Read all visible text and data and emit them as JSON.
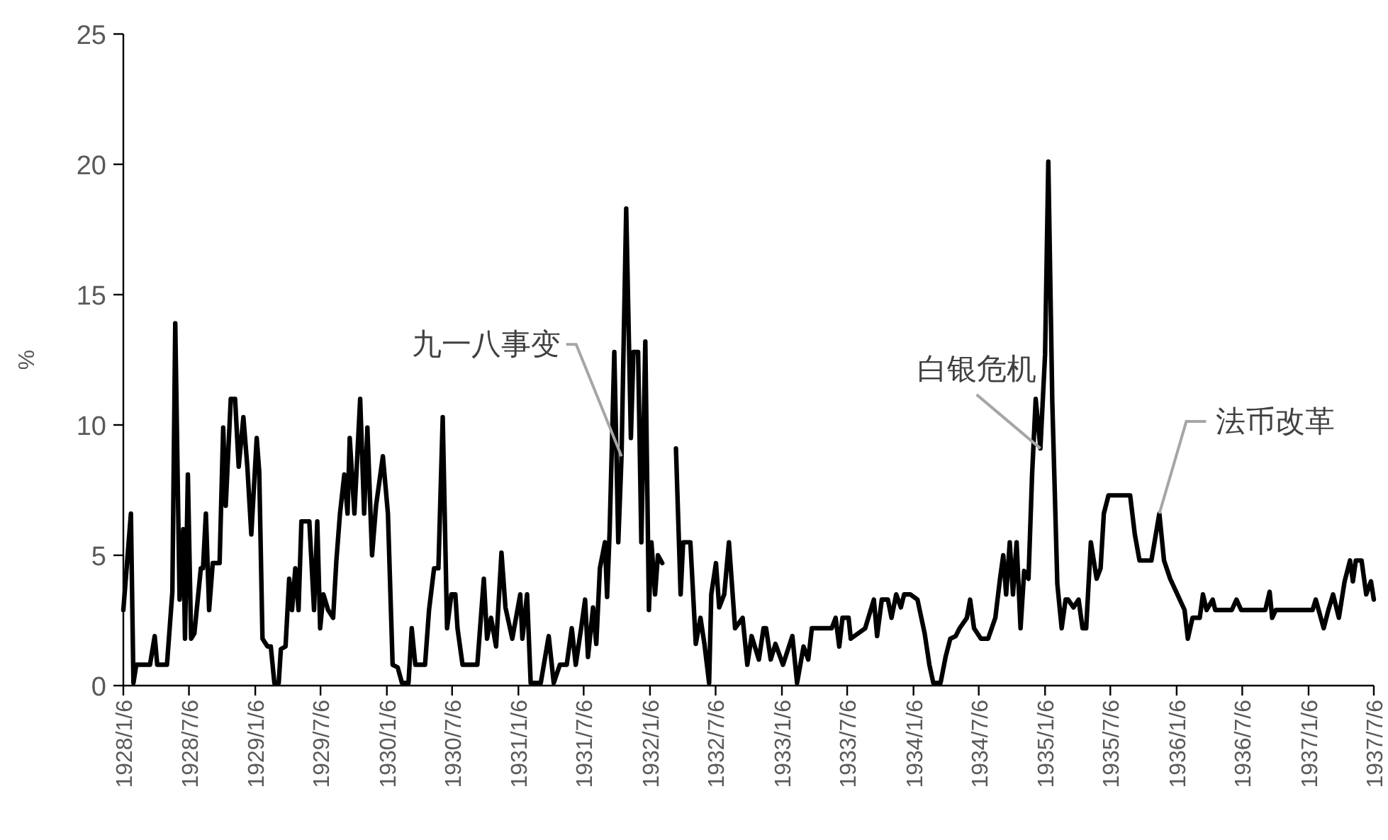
{
  "chart_data": {
    "type": "line",
    "ylabel": "%",
    "xlim": [
      "1928-01-06",
      "1937-07-06"
    ],
    "xticks": [
      {
        "value": "1928-01-06",
        "label": "1928/1/6"
      },
      {
        "value": "1928-07-06",
        "label": "1928/7/6"
      },
      {
        "value": "1929-01-06",
        "label": "1929/1/6"
      },
      {
        "value": "1929-07-06",
        "label": "1929/7/6"
      },
      {
        "value": "1930-01-06",
        "label": "1930/1/6"
      },
      {
        "value": "1930-07-06",
        "label": "1930/7/6"
      },
      {
        "value": "1931-01-06",
        "label": "1931/1/6"
      },
      {
        "value": "1931-07-06",
        "label": "1931/7/6"
      },
      {
        "value": "1932-01-06",
        "label": "1932/1/6"
      },
      {
        "value": "1932-07-06",
        "label": "1932/7/6"
      },
      {
        "value": "1933-01-06",
        "label": "1933/1/6"
      },
      {
        "value": "1933-07-06",
        "label": "1933/7/6"
      },
      {
        "value": "1934-01-06",
        "label": "1934/1/6"
      },
      {
        "value": "1934-07-06",
        "label": "1934/7/6"
      },
      {
        "value": "1935-01-06",
        "label": "1935/1/6"
      },
      {
        "value": "1935-07-06",
        "label": "1935/7/6"
      },
      {
        "value": "1936-01-06",
        "label": "1936/1/6"
      },
      {
        "value": "1936-07-06",
        "label": "1936/7/6"
      },
      {
        "value": "1937-01-06",
        "label": "1937/1/6"
      },
      {
        "value": "1937-07-06",
        "label": "1937/7/6"
      }
    ],
    "ylim": [
      0,
      25
    ],
    "yticks": [
      0,
      5,
      10,
      15,
      20,
      25
    ],
    "annotations": [
      {
        "text": "九一八事变",
        "x": "1931-10-19",
        "y": 8.8
      },
      {
        "text": "白银危机",
        "x": "1934-12-24",
        "y": 9.1
      },
      {
        "text": "法币改革",
        "x": "1935-11-19",
        "y": 6.6
      }
    ],
    "series": [
      {
        "color": "#000000",
        "x": [
          "1928-01-06",
          "1928-01-27",
          "1928-02-03",
          "1928-02-11",
          "1928-03-20",
          "1928-04-02",
          "1928-04-09",
          "1928-05-06",
          "1928-05-21",
          "1928-05-29",
          "1928-06-10",
          "1928-06-20",
          "1928-06-25",
          "1928-07-03",
          "1928-07-12",
          "1928-07-21",
          "1928-08-08",
          "1928-08-14",
          "1928-08-22",
          "1928-08-31",
          "1928-09-10",
          "1928-09-29",
          "1928-10-09",
          "1928-10-16",
          "1928-10-30",
          "1928-11-11",
          "1928-11-21",
          "1928-12-04",
          "1928-12-15",
          "1928-12-26",
          "1929-01-10",
          "1929-01-17",
          "1929-01-26",
          "1929-02-09",
          "1929-02-18",
          "1929-02-28",
          "1929-03-12",
          "1929-03-18",
          "1929-03-31",
          "1929-04-10",
          "1929-04-18",
          "1929-04-27",
          "1929-05-06",
          "1929-05-14",
          "1929-06-05",
          "1929-06-18",
          "1929-06-27",
          "1929-07-05",
          "1929-07-14",
          "1929-07-27",
          "1929-08-10",
          "1929-08-19",
          "1929-08-29",
          "1929-09-10",
          "1929-09-19",
          "1929-09-25",
          "1929-10-08",
          "1929-10-24",
          "1929-11-04",
          "1929-11-13",
          "1929-11-26",
          "1929-12-07",
          "1929-12-26",
          "1930-01-09",
          "1930-01-22",
          "1930-02-05",
          "1930-02-17",
          "1930-03-07",
          "1930-03-16",
          "1930-03-26",
          "1930-04-22",
          "1930-05-03",
          "1930-05-17",
          "1930-05-29",
          "1930-06-10",
          "1930-06-22",
          "1930-07-04",
          "1930-07-15",
          "1930-07-21",
          "1930-08-04",
          "1930-09-14",
          "1930-10-02",
          "1930-10-11",
          "1930-10-22",
          "1930-11-05",
          "1930-11-20",
          "1930-12-01",
          "1930-12-20",
          "1931-01-11",
          "1931-01-17",
          "1931-01-30",
          "1931-02-09",
          "1931-03-09",
          "1931-03-31",
          "1931-04-14",
          "1931-05-01",
          "1931-05-20",
          "1931-06-03",
          "1931-06-14",
          "1931-06-29",
          "1931-07-10",
          "1931-07-18",
          "1931-08-01",
          "1931-08-10",
          "1931-08-20",
          "1931-09-03",
          "1931-09-09",
          "1931-09-16",
          "1931-09-29",
          "1931-10-10",
          "1931-10-19",
          "1931-11-01",
          "1931-11-14",
          "1931-11-21",
          "1931-12-04",
          "1931-12-13",
          "1931-12-24",
          "1932-01-03",
          "1932-01-10",
          "1932-01-20",
          "1932-01-28",
          "1932-02-09"
        ],
        "values": [
          2.9,
          6.6,
          0.1,
          0.8,
          0.8,
          1.9,
          0.8,
          0.8,
          3.6,
          13.9,
          3.3,
          6.0,
          1.8,
          8.1,
          1.8,
          2.0,
          4.5,
          4.5,
          6.6,
          2.9,
          4.7,
          4.7,
          9.9,
          6.9,
          11.0,
          11.0,
          8.4,
          10.3,
          8.4,
          5.8,
          9.5,
          8.2,
          1.8,
          1.5,
          1.5,
          0.1,
          0.1,
          1.4,
          1.5,
          4.1,
          2.9,
          4.5,
          2.9,
          6.3,
          6.3,
          2.9,
          6.3,
          2.2,
          3.5,
          2.9,
          2.6,
          4.8,
          6.6,
          8.1,
          6.6,
          9.5,
          6.6,
          11.0,
          6.6,
          9.9,
          5.0,
          6.9,
          8.8,
          6.6,
          0.8,
          0.7,
          0.1,
          0.1,
          2.2,
          0.8,
          0.8,
          2.9,
          4.5,
          4.5,
          10.3,
          2.2,
          3.5,
          3.5,
          2.2,
          0.8,
          0.8,
          4.1,
          1.8,
          2.6,
          1.5,
          5.1,
          3.0,
          1.8,
          3.5,
          1.8,
          3.5,
          0.1,
          0.1,
          1.9,
          0.1,
          0.8,
          0.8,
          2.2,
          0.8,
          2.2,
          3.3,
          1.1,
          3.0,
          1.6,
          4.5,
          5.5,
          3.4,
          5.9,
          12.8,
          5.5,
          8.8,
          18.3,
          9.5,
          12.8,
          12.8,
          5.5,
          13.2,
          2.9,
          5.5,
          3.5,
          5.0,
          4.7
        ]
      },
      {
        "color": "#000000",
        "x": [
          "1932-03-18",
          "1932-03-31",
          "1932-04-07",
          "1932-04-27",
          "1932-05-12",
          "1932-05-25",
          "1932-06-05",
          "1932-06-18",
          "1932-06-24",
          "1932-07-07",
          "1932-07-16",
          "1932-07-30",
          "1932-08-12",
          "1932-08-29",
          "1932-09-19",
          "1932-10-02",
          "1932-10-14",
          "1932-11-03",
          "1932-11-16",
          "1932-11-23",
          "1932-12-06",
          "1932-12-19",
          "1933-01-09",
          "1933-02-04",
          "1933-02-17",
          "1933-03-07",
          "1933-03-20",
          "1933-03-30",
          "1933-04-15",
          "1933-05-24",
          "1933-06-04",
          "1933-06-14",
          "1933-06-23",
          "1933-07-10",
          "1933-07-16",
          "1933-08-25",
          "1933-09-18",
          "1933-09-27",
          "1933-10-10",
          "1933-10-27",
          "1933-11-06",
          "1933-11-19",
          "1933-12-02",
          "1933-12-11",
          "1933-12-28",
          "1934-01-17",
          "1934-02-06",
          "1934-02-19",
          "1934-03-02",
          "1934-03-22",
          "1934-04-05",
          "1934-04-18",
          "1934-05-03",
          "1934-05-14",
          "1934-06-03",
          "1934-06-12",
          "1934-06-23",
          "1934-07-12",
          "1934-08-01",
          "1934-08-21",
          "1934-09-03",
          "1934-09-12",
          "1934-09-20",
          "1934-09-30",
          "1934-10-09",
          "1934-10-19",
          "1934-10-30",
          "1934-11-09",
          "1934-11-21",
          "1934-12-01",
          "1934-12-11",
          "1934-12-24",
          "1935-01-06",
          "1935-01-15",
          "1935-01-26",
          "1935-02-09",
          "1935-02-21",
          "1935-03-04",
          "1935-03-11",
          "1935-03-26",
          "1935-04-09",
          "1935-04-20",
          "1935-04-30",
          "1935-05-13",
          "1935-05-29",
          "1935-06-09",
          "1935-06-18",
          "1935-07-01",
          "1935-08-30",
          "1935-09-12",
          "1935-09-25",
          "1935-10-28",
          "1935-11-19",
          "1935-12-02",
          "1935-12-19",
          "1936-01-08",
          "1936-01-28",
          "1936-02-06",
          "1936-02-19",
          "1936-03-10",
          "1936-03-19",
          "1936-03-29",
          "1936-04-15",
          "1936-04-22",
          "1936-06-07",
          "1936-06-20",
          "1936-07-03",
          "1936-09-08",
          "1936-09-20",
          "1936-09-27",
          "1936-10-07",
          "1937-01-17",
          "1937-01-26",
          "1937-02-03",
          "1937-02-17",
          "1937-03-02",
          "1937-03-15",
          "1937-03-31",
          "1937-04-16",
          "1937-05-01",
          "1937-05-09",
          "1937-05-17",
          "1937-06-02",
          "1937-06-15",
          "1937-06-28",
          "1937-07-06"
        ],
        "values": [
          9.1,
          3.5,
          5.5,
          5.5,
          1.6,
          2.6,
          1.6,
          0.1,
          3.5,
          4.7,
          3.0,
          3.5,
          5.5,
          2.2,
          2.6,
          0.8,
          1.9,
          1.0,
          2.2,
          2.2,
          1.0,
          1.6,
          0.8,
          1.9,
          0.1,
          1.5,
          1.0,
          2.2,
          2.2,
          2.2,
          2.6,
          1.5,
          2.6,
          2.6,
          1.8,
          2.2,
          3.3,
          1.9,
          3.3,
          3.3,
          2.6,
          3.5,
          3.0,
          3.5,
          3.5,
          3.3,
          2.0,
          0.8,
          0.1,
          0.1,
          1.1,
          1.8,
          1.9,
          2.2,
          2.6,
          3.3,
          2.2,
          1.8,
          1.8,
          2.6,
          4.1,
          5.0,
          3.5,
          5.5,
          3.5,
          5.5,
          2.2,
          4.4,
          4.1,
          8.1,
          11.0,
          9.1,
          12.7,
          20.1,
          10.9,
          3.9,
          2.2,
          3.3,
          3.3,
          3.0,
          3.3,
          2.2,
          2.2,
          5.5,
          4.1,
          4.5,
          6.6,
          7.3,
          7.3,
          5.8,
          4.8,
          4.8,
          6.6,
          4.8,
          4.1,
          3.5,
          2.9,
          1.8,
          2.6,
          2.6,
          3.5,
          2.9,
          3.3,
          2.9,
          2.9,
          3.3,
          2.9,
          2.9,
          3.6,
          2.6,
          2.9,
          2.9,
          3.3,
          2.9,
          2.2,
          2.9,
          3.5,
          2.6,
          4.0,
          4.8,
          4.0,
          4.8,
          4.8,
          3.5,
          4.0,
          3.3
        ]
      }
    ]
  }
}
